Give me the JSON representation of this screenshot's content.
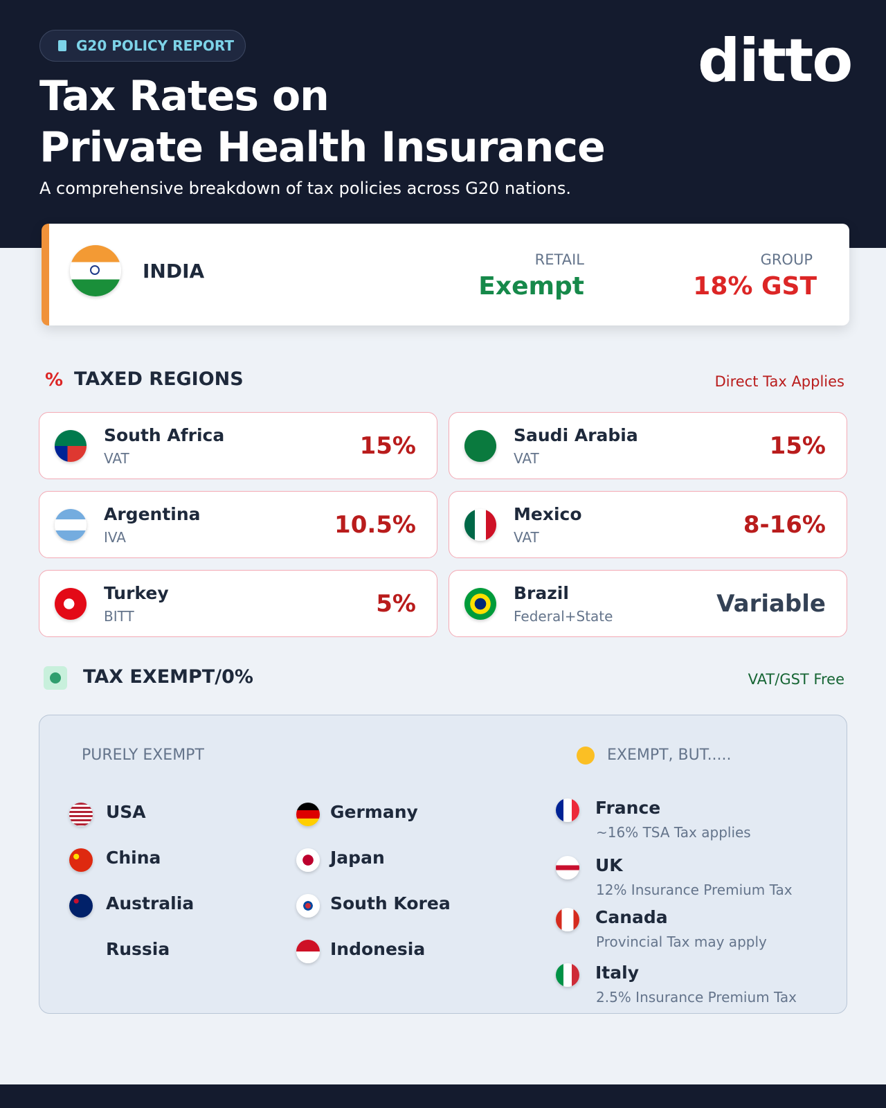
{
  "header": {
    "badge": "G20 POLICY REPORT",
    "title_line1": "Tax Rates on",
    "title_line2": "Private Health Insurance",
    "subtitle": "A comprehensive breakdown of tax policies across G20 nations.",
    "logo": "ditto"
  },
  "featured": {
    "country": "INDIA",
    "retail_label": "RETAIL",
    "retail_value": "Exempt",
    "group_label": "GROUP",
    "group_value": "18% GST"
  },
  "taxed": {
    "icon": "%",
    "title": "TAXED REGIONS",
    "note": "Direct Tax Applies",
    "items": [
      {
        "country": "South Africa",
        "tax": "VAT",
        "rate": "15%",
        "color": "#b91c1c"
      },
      {
        "country": "Saudi Arabia",
        "tax": "VAT",
        "rate": "15%",
        "color": "#b91c1c"
      },
      {
        "country": "Argentina",
        "tax": "IVA",
        "rate": "10.5%",
        "color": "#b91c1c"
      },
      {
        "country": "Mexico",
        "tax": "VAT",
        "rate": "8-16%",
        "color": "#b91c1c"
      },
      {
        "country": "Turkey",
        "tax": "BITT",
        "rate": "5%",
        "color": "#b91c1c"
      },
      {
        "country": "Brazil",
        "tax": "Federal+State",
        "rate": "Variable",
        "color": "#334155"
      }
    ]
  },
  "exempt": {
    "title": "TAX EXEMPT/0%",
    "note": "VAT/GST Free",
    "purely_label": "PURELY EXEMPT",
    "purely": [
      "USA",
      "China",
      "Australia",
      "Russia",
      "Germany",
      "Japan",
      "South Korea",
      "Indonesia"
    ],
    "but_label": "EXEMPT, BUT.....",
    "but": [
      {
        "country": "France",
        "note": "~16% TSA Tax applies"
      },
      {
        "country": "UK",
        "note": "12% Insurance Premium Tax"
      },
      {
        "country": "Canada",
        "note": "Provincial Tax may apply"
      },
      {
        "country": "Italy",
        "note": "2.5% Insurance Premium Tax"
      }
    ]
  }
}
